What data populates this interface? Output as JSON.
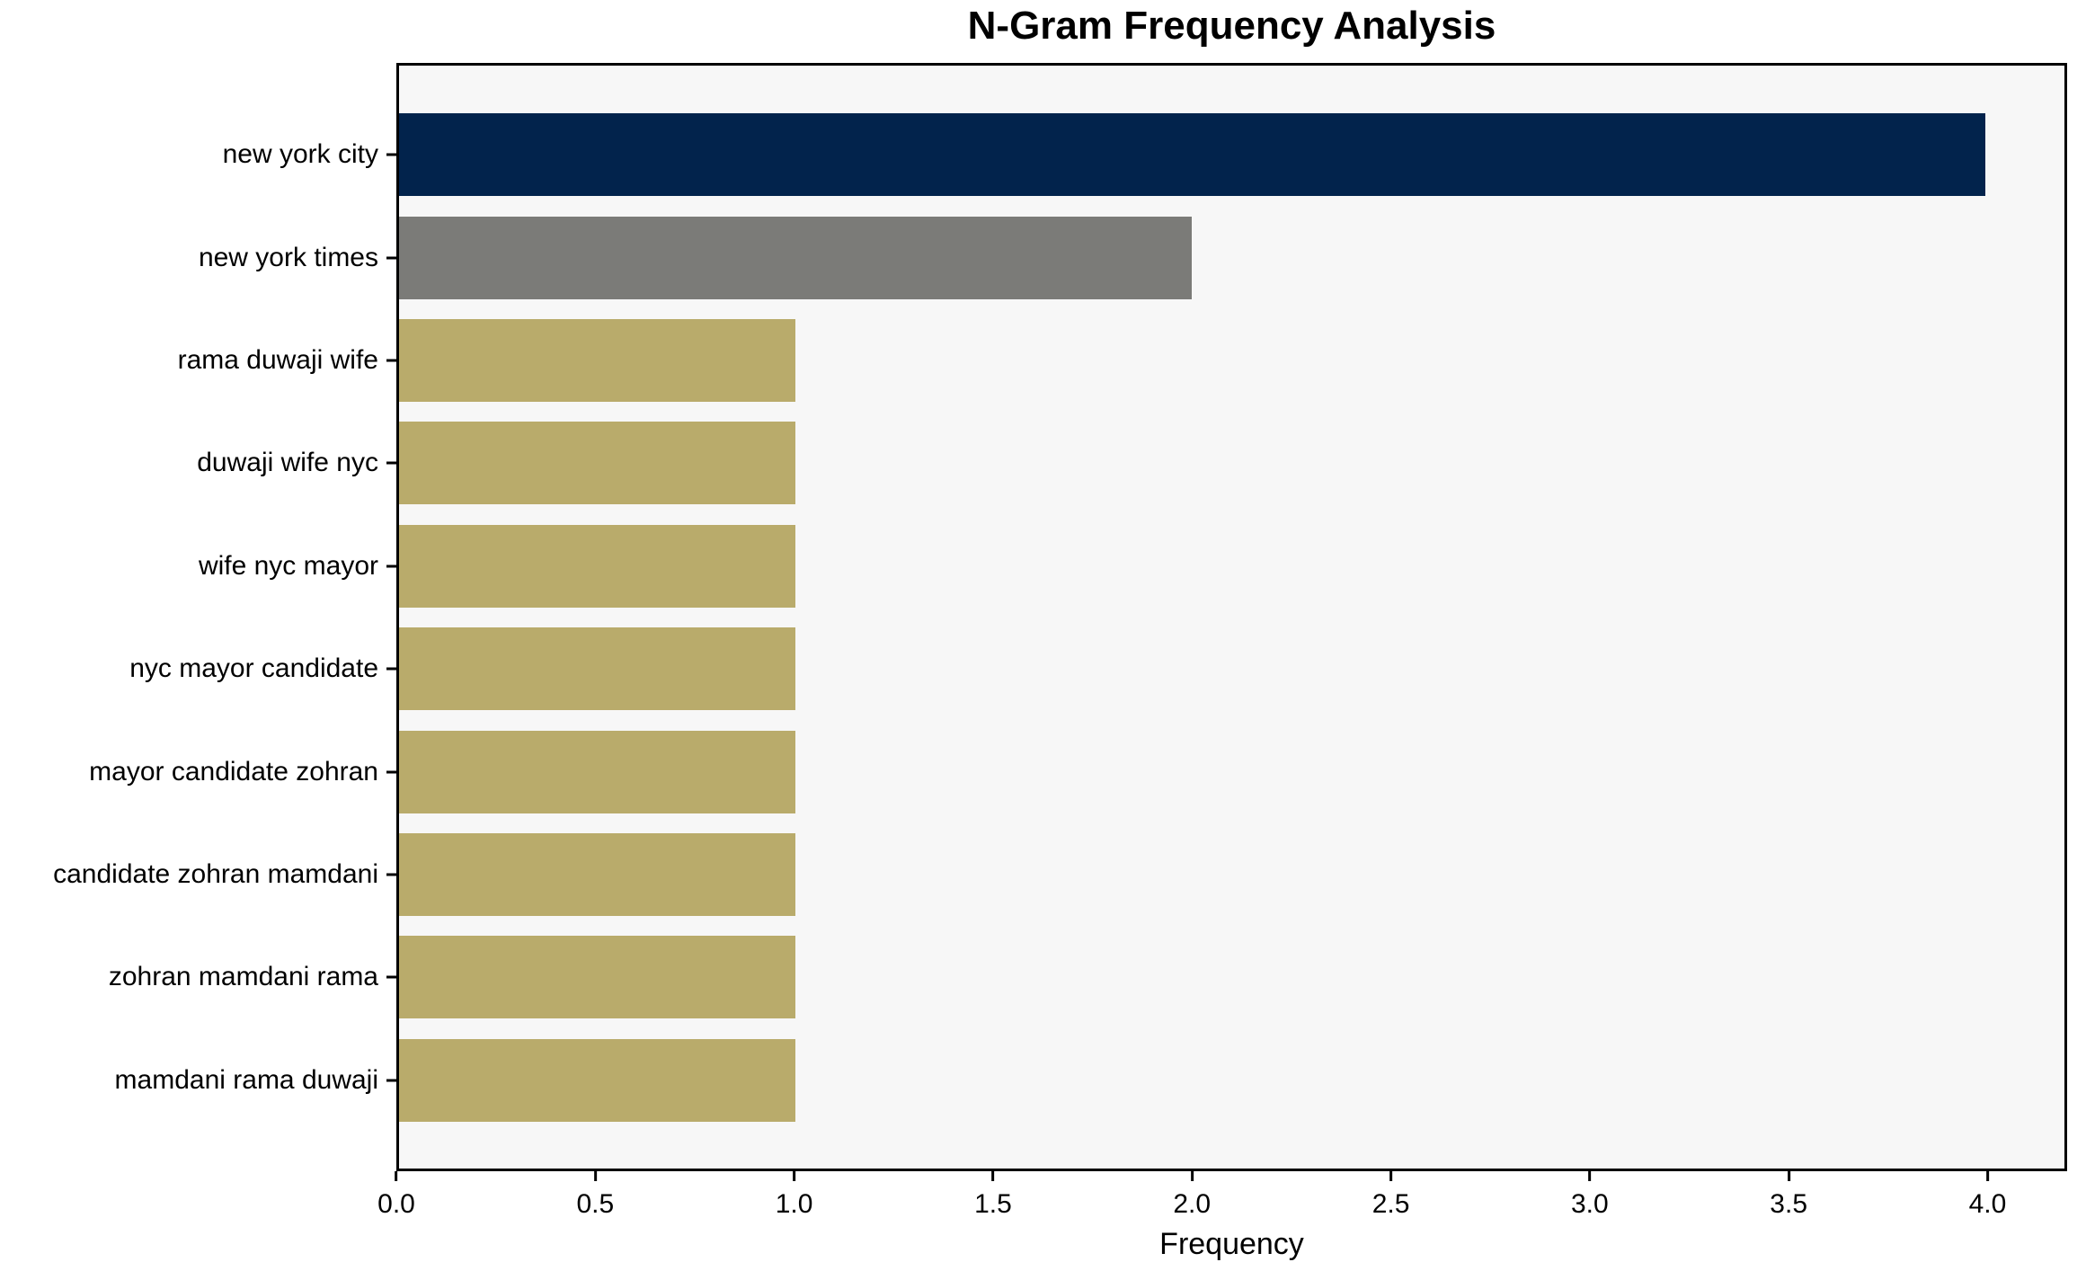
{
  "chart_data": {
    "type": "bar",
    "orientation": "horizontal",
    "title": "N-Gram Frequency Analysis",
    "xlabel": "Frequency",
    "ylabel": "",
    "categories": [
      "new york city",
      "new york times",
      "rama duwaji wife",
      "duwaji wife nyc",
      "wife nyc mayor",
      "nyc mayor candidate",
      "mayor candidate zohran",
      "candidate zohran mamdani",
      "zohran mamdani rama",
      "mamdani rama duwaji"
    ],
    "values": [
      4,
      2,
      1,
      1,
      1,
      1,
      1,
      1,
      1,
      1
    ],
    "bar_colors": [
      "#02234c",
      "#7b7b78",
      "#b9ab6b",
      "#b9ab6b",
      "#b9ab6b",
      "#b9ab6b",
      "#b9ab6b",
      "#b9ab6b",
      "#b9ab6b",
      "#b9ab6b"
    ],
    "xlim": [
      0,
      4.2
    ],
    "xticks": [
      0.0,
      0.5,
      1.0,
      1.5,
      2.0,
      2.5,
      3.0,
      3.5,
      4.0
    ],
    "xtick_labels": [
      "0.0",
      "0.5",
      "1.0",
      "1.5",
      "2.0",
      "2.5",
      "3.0",
      "3.5",
      "4.0"
    ],
    "grid": false,
    "legend_position": "none",
    "plot_background": "#f7f7f7",
    "figure_background": "#ffffff",
    "spine_color": "#000000",
    "text_color": "#000000"
  }
}
